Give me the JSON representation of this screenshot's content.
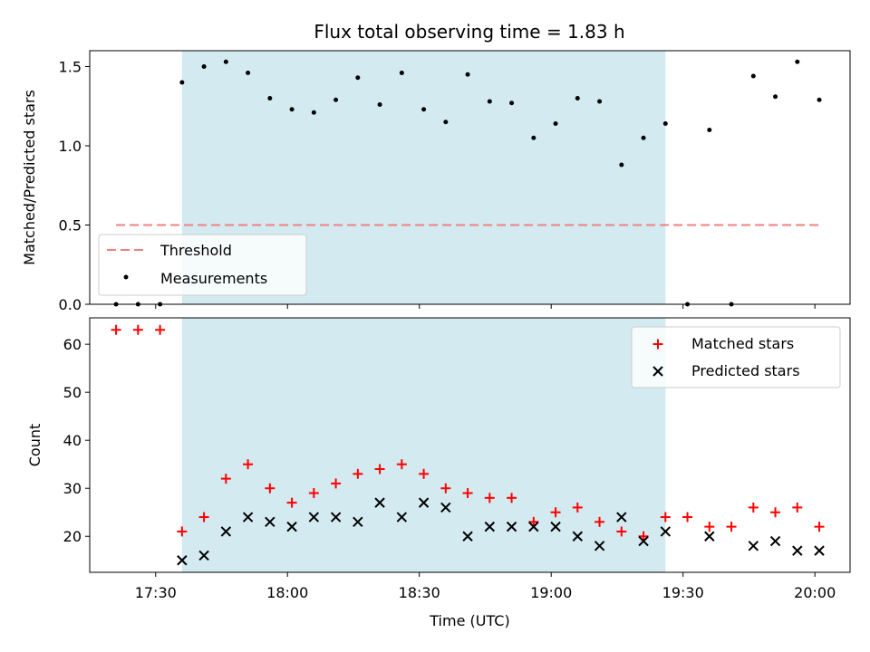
{
  "chart_data": {
    "title": "Flux total observing time = 1.83 h",
    "xlabel": "Time (UTC)",
    "x_ticks": [
      "17:30",
      "18:00",
      "18:30",
      "19:00",
      "19:30",
      "20:00"
    ],
    "colors": {
      "span": "#d3eaf0",
      "threshold": "#f08080",
      "measurements": "#000000",
      "matched": "#ff0000",
      "predicted": "#000000"
    },
    "panels": [
      {
        "type": "scatter",
        "ylabel": "Matched/Predicted stars",
        "ylim": [
          0,
          1.6
        ],
        "yticks": [
          "0.0",
          "0.5",
          "1.0",
          "1.5"
        ],
        "legend_position": "lower-left",
        "series": [
          {
            "name": "Threshold",
            "style": "dashed-line",
            "x": [
              "17:21",
              "20:01"
            ],
            "y": [
              0.5,
              0.5
            ]
          },
          {
            "name": "Measurements",
            "style": "dot",
            "x": [
              "17:21",
              "17:26",
              "17:31",
              "17:36",
              "17:41",
              "17:46",
              "17:51",
              "17:56",
              "18:01",
              "18:06",
              "18:11",
              "18:16",
              "18:21",
              "18:26",
              "18:31",
              "18:36",
              "18:41",
              "18:46",
              "18:51",
              "18:56",
              "19:01",
              "19:06",
              "19:11",
              "19:16",
              "19:21",
              "19:26",
              "19:31",
              "19:36",
              "19:41",
              "19:46",
              "19:51",
              "19:56",
              "20:01"
            ],
            "y": [
              0.0,
              0.0,
              0.0,
              1.4,
              1.5,
              1.53,
              1.46,
              1.3,
              1.23,
              1.21,
              1.29,
              1.43,
              1.26,
              1.46,
              1.23,
              1.15,
              1.45,
              1.28,
              1.27,
              1.05,
              1.14,
              1.3,
              1.28,
              0.88,
              1.05,
              1.14,
              0.0,
              1.1,
              0.0,
              1.44,
              1.31,
              1.53,
              1.29
            ]
          }
        ]
      },
      {
        "type": "scatter",
        "ylabel": "Count",
        "ylim": [
          12.5,
          65.5
        ],
        "yticks": [
          "20",
          "30",
          "40",
          "50",
          "60"
        ],
        "legend_position": "upper-right",
        "series": [
          {
            "name": "Matched stars",
            "style": "plus",
            "x": [
              "17:21",
              "17:26",
              "17:31",
              "17:36",
              "17:41",
              "17:46",
              "17:51",
              "17:56",
              "18:01",
              "18:06",
              "18:11",
              "18:16",
              "18:21",
              "18:26",
              "18:31",
              "18:36",
              "18:41",
              "18:46",
              "18:51",
              "18:56",
              "19:01",
              "19:06",
              "19:11",
              "19:16",
              "19:21",
              "19:26",
              "19:31",
              "19:36",
              "19:41",
              "19:46",
              "19:51",
              "19:56",
              "20:01"
            ],
            "y": [
              63,
              63,
              63,
              21,
              24,
              32,
              35,
              30,
              27,
              29,
              31,
              33,
              34,
              35,
              33,
              30,
              29,
              28,
              28,
              23,
              25,
              26,
              23,
              21,
              20,
              24,
              24,
              22,
              22,
              26,
              25,
              26,
              22
            ]
          },
          {
            "name": "Predicted stars",
            "style": "x",
            "x": [
              "17:36",
              "17:41",
              "17:46",
              "17:51",
              "17:56",
              "18:01",
              "18:06",
              "18:11",
              "18:16",
              "18:21",
              "18:26",
              "18:31",
              "18:36",
              "18:41",
              "18:46",
              "18:51",
              "18:56",
              "19:01",
              "19:06",
              "19:11",
              "19:16",
              "19:21",
              "19:26",
              "19:36",
              "19:46",
              "19:51",
              "19:56",
              "20:01"
            ],
            "y": [
              15,
              16,
              21,
              24,
              23,
              22,
              24,
              24,
              23,
              27,
              24,
              27,
              26,
              20,
              22,
              22,
              22,
              22,
              20,
              18,
              24,
              19,
              21,
              20,
              18,
              19,
              17,
              17
            ]
          }
        ]
      }
    ],
    "shaded_span": {
      "x_start": "17:36",
      "x_end": "19:26"
    }
  }
}
